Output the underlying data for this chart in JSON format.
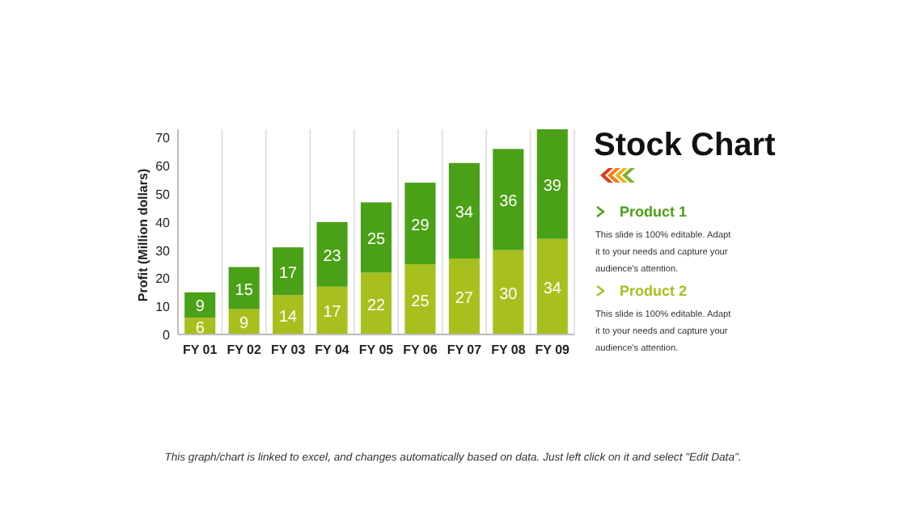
{
  "chart_data": {
    "type": "bar",
    "title": "Stock Chart",
    "ylabel": "Profit  (Million dollars)",
    "stacked": true,
    "data_labels": true,
    "grid": "x",
    "legend": "right",
    "categories": [
      "FY 01",
      "FY 02",
      "FY 03",
      "FY 04",
      "FY 05",
      "FY 06",
      "FY 07",
      "FY 08",
      "FY 09"
    ],
    "series": [
      {
        "name": "Product 2",
        "color": "#a8bf1e",
        "values": [
          6,
          9,
          14,
          17,
          22,
          25,
          27,
          30,
          34
        ]
      },
      {
        "name": "Product 1",
        "color": "#4aa016",
        "values": [
          9,
          15,
          17,
          23,
          25,
          29,
          34,
          36,
          39
        ]
      }
    ],
    "ylim": [
      0,
      73
    ],
    "yticks": [
      0,
      10,
      20,
      30,
      40,
      50,
      60,
      70
    ],
    "annotations": [
      "This slide is 100% editable. Adapt it to your needs and capture your audience's attention.",
      "This slide is 100% editable. Adapt it to your needs and capture your audience's attention.",
      "This graph/chart is linked to excel, and changes automatically based on data. Just left click on it and select \"Edit Data\"."
    ]
  }
}
